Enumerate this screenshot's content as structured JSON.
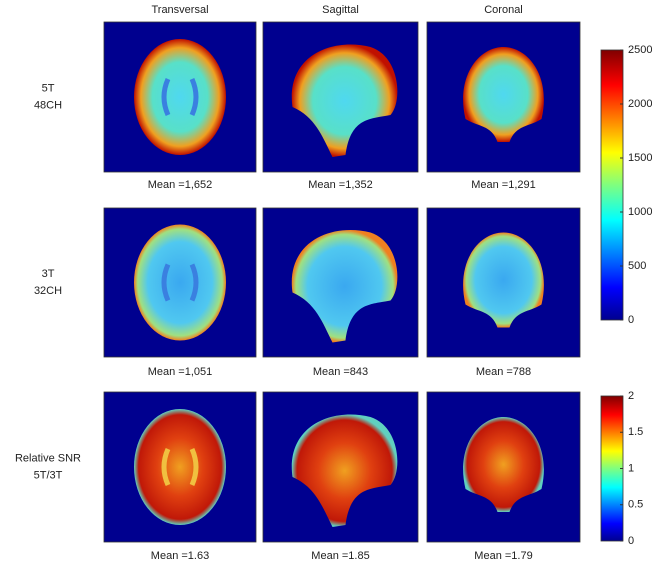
{
  "columns": [
    "Transversal",
    "Sagittal",
    "Coronal"
  ],
  "rows": [
    {
      "label_lines": [
        "5T",
        "48CH"
      ],
      "means": [
        "Mean =1,652",
        "Mean =1,352",
        "Mean =1,291"
      ]
    },
    {
      "label_lines": [
        "3T",
        "32CH"
      ],
      "means": [
        "Mean =1,051",
        "Mean =843",
        "Mean =788"
      ]
    },
    {
      "label_lines": [
        "Relative SNR",
        "5T/3T"
      ],
      "means": [
        "Mean =1.63",
        "Mean =1.85",
        "Mean =1.79"
      ]
    }
  ],
  "colorbars": [
    {
      "lim": [
        0,
        2500
      ],
      "ticks": [
        0,
        500,
        1000,
        1500,
        2000,
        2500
      ]
    },
    {
      "lim": [
        0,
        2
      ],
      "ticks": [
        0,
        0.5,
        1,
        1.5,
        2
      ]
    }
  ]
}
